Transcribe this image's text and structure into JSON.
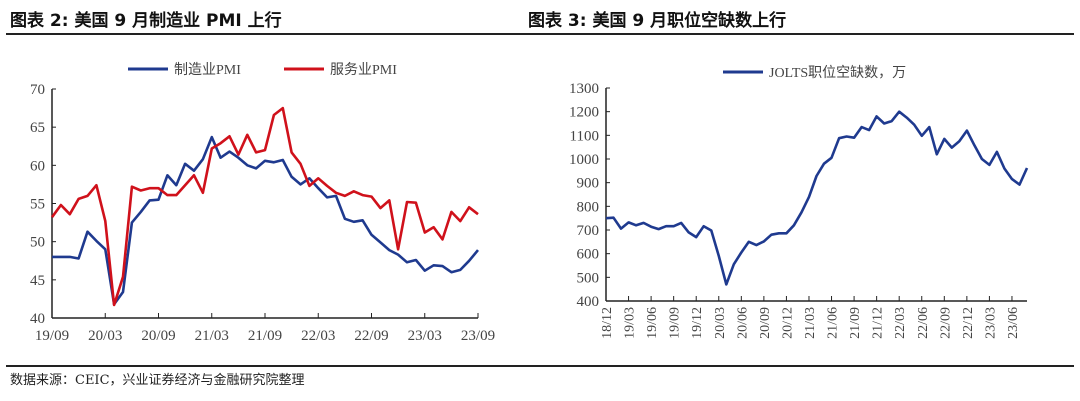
{
  "header": {
    "title_left": "图表 2:  美国 9 月制造业 PMI 上行",
    "title_right": "图表 3:  美国 9 月职位空缺数上行"
  },
  "footer": {
    "source": "数据来源：CEIC，兴业证券经济与金融研究院整理"
  },
  "chart_data": [
    {
      "type": "line",
      "title": "美国 9 月制造业 PMI 上行",
      "xlabel": "",
      "ylabel": "",
      "ylim": [
        40,
        70
      ],
      "yticks": [
        "40",
        "45",
        "50",
        "55",
        "60",
        "65",
        "70"
      ],
      "xticks": [
        "19/09",
        "20/03",
        "20/09",
        "21/03",
        "21/09",
        "22/03",
        "22/09",
        "23/03",
        "23/09"
      ],
      "x_start": "19/09",
      "x_end": "23/09",
      "frequency": "monthly",
      "legend_position": "top-center",
      "series": [
        {
          "name": "制造业PMI",
          "color": "#1f3a8f",
          "values": [
            48,
            48,
            48,
            47.8,
            51.3,
            50.1,
            49,
            41.8,
            43.4,
            52.5,
            53.9,
            55.4,
            55.5,
            58.7,
            57.4,
            60.2,
            59.3,
            60.8,
            63.7,
            61.0,
            61.8,
            61,
            60,
            59.6,
            60.6,
            60.4,
            60.7,
            58.5,
            57.5,
            58.3,
            57,
            55.8,
            56,
            53,
            52.6,
            52.8,
            50.9,
            49.9,
            48.9,
            48.3,
            47.3,
            47.6,
            46.2,
            46.9,
            46.8,
            46,
            46.3,
            47.5,
            48.9
          ]
        },
        {
          "name": "服务业PMI",
          "color": "#d0111b",
          "values": [
            53.2,
            54.8,
            53.6,
            55.6,
            56.0,
            57.4,
            52.7,
            41.7,
            45.4,
            57.2,
            56.7,
            57.0,
            57.0,
            56.1,
            56.1,
            57.4,
            58.7,
            56.4,
            62.2,
            62.9,
            63.8,
            61.4,
            64.0,
            61.7,
            62.0,
            66.6,
            67.5,
            61.7,
            60.2,
            57.3,
            58.3,
            57.3,
            56.4,
            56.0,
            56.6,
            56.1,
            55.9,
            54.4,
            55.4,
            49.0,
            55.2,
            55.1,
            51.2,
            51.9,
            50.3,
            53.9,
            52.7,
            54.5,
            53.6
          ]
        }
      ]
    },
    {
      "type": "line",
      "title": "美国 9 月职位空缺数上行",
      "xlabel": "",
      "ylabel": "",
      "ylim": [
        400,
        1300
      ],
      "yticks": [
        "400",
        "500",
        "600",
        "700",
        "800",
        "900",
        "1000",
        "1100",
        "1200",
        "1300"
      ],
      "xticks": [
        "18/12",
        "19/03",
        "19/06",
        "19/09",
        "19/12",
        "20/03",
        "20/06",
        "20/09",
        "20/12",
        "21/03",
        "21/06",
        "21/09",
        "21/12",
        "22/03",
        "22/06",
        "22/09",
        "22/12",
        "23/03",
        "23/06"
      ],
      "x_start": "18/12",
      "x_end": "23/08",
      "frequency": "monthly",
      "legend_position": "top-center",
      "series": [
        {
          "name": "JOLTS职位空缺数，万",
          "color": "#1f3a8f",
          "values": [
            750,
            752,
            706,
            732,
            720,
            730,
            714,
            704,
            716,
            716,
            730,
            690,
            670,
            716,
            698,
            590,
            470,
            555,
            605,
            650,
            636,
            652,
            680,
            686,
            686,
            720,
            775,
            840,
            928,
            980,
            1005,
            1088,
            1095,
            1090,
            1135,
            1122,
            1180,
            1150,
            1160,
            1200,
            1175,
            1145,
            1098,
            1135,
            1020,
            1085,
            1048,
            1075,
            1120,
            1058,
            1000,
            975,
            1030,
            960,
            915,
            892,
            962
          ]
        }
      ]
    }
  ]
}
